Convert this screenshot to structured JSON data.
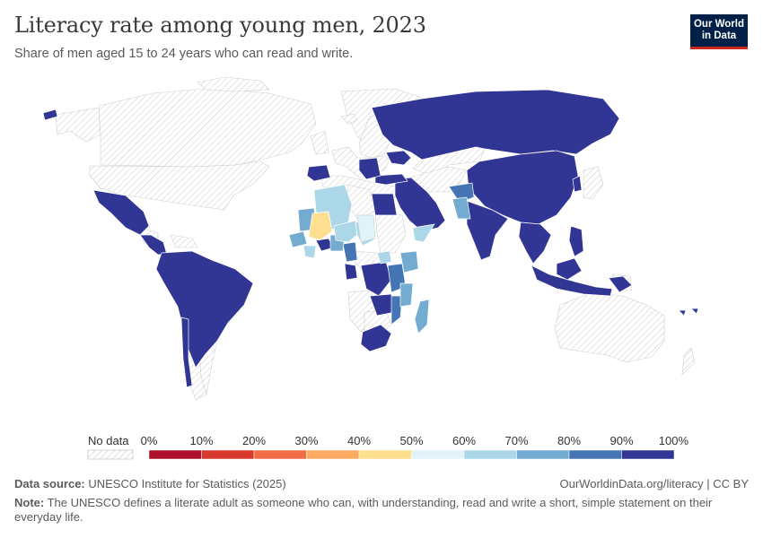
{
  "header": {
    "title": "Literacy rate among young men, 2023",
    "subtitle": "Share of men aged 15 to 24 years who can read and write."
  },
  "logo": {
    "line1": "Our World",
    "line2": "in Data"
  },
  "legend": {
    "no_data_label": "No data",
    "ticks": [
      "0%",
      "10%",
      "20%",
      "30%",
      "40%",
      "50%",
      "60%",
      "70%",
      "80%",
      "90%",
      "100%"
    ],
    "colors": [
      "#ab0f29",
      "#d73a2c",
      "#f26d45",
      "#fdab62",
      "#fedf8f",
      "#e1f2f8",
      "#abd7e8",
      "#74acd1",
      "#4575b4",
      "#313695"
    ]
  },
  "colors": {
    "high": "#313695",
    "mid_high": "#4575b4",
    "mid": "#74acd1",
    "light": "#abd7e8",
    "very_light": "#e1f2f8",
    "low": "#fedf8f",
    "no_data_stroke": "#d0d0d0",
    "border": "#ffffff"
  },
  "footer": {
    "source_label": "Data source:",
    "source_text": " UNESCO Institute for Statistics (2025)",
    "credit": "OurWorldinData.org/literacy | CC BY",
    "note_label": "Note:",
    "note_text": " The UNESCO defines a literate adult as someone who can, with understanding, read and write a short, simple statement on their everyday life."
  }
}
